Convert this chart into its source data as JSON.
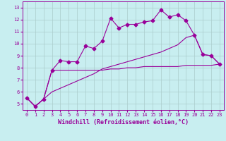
{
  "title": "",
  "xlabel": "Windchill (Refroidissement éolien,°C)",
  "ylabel": "",
  "bg_color": "#c8eef0",
  "line_color": "#990099",
  "grid_color": "#aacccc",
  "xlim": [
    -0.5,
    23.5
  ],
  "ylim": [
    4.5,
    13.5
  ],
  "xticks": [
    0,
    1,
    2,
    3,
    4,
    5,
    6,
    7,
    8,
    9,
    10,
    11,
    12,
    13,
    14,
    15,
    16,
    17,
    18,
    19,
    20,
    21,
    22,
    23
  ],
  "yticks": [
    5,
    6,
    7,
    8,
    9,
    10,
    11,
    12,
    13
  ],
  "line1_x": [
    0,
    1,
    2,
    3,
    4,
    5,
    6,
    7,
    8,
    9,
    10,
    11,
    12,
    13,
    14,
    15,
    16,
    17,
    18,
    19,
    20,
    21,
    22,
    23
  ],
  "line1_y": [
    5.5,
    4.8,
    5.4,
    7.8,
    8.6,
    8.5,
    8.5,
    9.8,
    9.6,
    10.2,
    12.1,
    11.3,
    11.6,
    11.6,
    11.8,
    11.9,
    12.8,
    12.2,
    12.4,
    11.9,
    10.7,
    9.1,
    9.0,
    8.3
  ],
  "line2_x": [
    0,
    1,
    2,
    3,
    4,
    5,
    6,
    7,
    8,
    9,
    10,
    11,
    12,
    13,
    14,
    15,
    16,
    17,
    18,
    19,
    20,
    21,
    22,
    23
  ],
  "line2_y": [
    5.5,
    4.8,
    5.4,
    7.8,
    7.8,
    7.8,
    7.8,
    7.8,
    7.8,
    7.8,
    7.9,
    7.9,
    8.0,
    8.0,
    8.1,
    8.1,
    8.1,
    8.1,
    8.1,
    8.2,
    8.2,
    8.2,
    8.2,
    8.3
  ],
  "line3_x": [
    0,
    1,
    2,
    3,
    4,
    5,
    6,
    7,
    8,
    9,
    10,
    11,
    12,
    13,
    14,
    15,
    16,
    17,
    18,
    19,
    20,
    21,
    22,
    23
  ],
  "line3_y": [
    5.5,
    4.8,
    5.4,
    6.0,
    6.3,
    6.6,
    6.9,
    7.2,
    7.5,
    7.9,
    8.1,
    8.3,
    8.5,
    8.7,
    8.9,
    9.1,
    9.3,
    9.6,
    9.9,
    10.5,
    10.7,
    9.1,
    9.0,
    8.3
  ],
  "marker_size": 2.5,
  "marker": "D",
  "line_width": 0.8,
  "tick_fontsize": 5.0,
  "xlabel_fontsize": 6.0
}
